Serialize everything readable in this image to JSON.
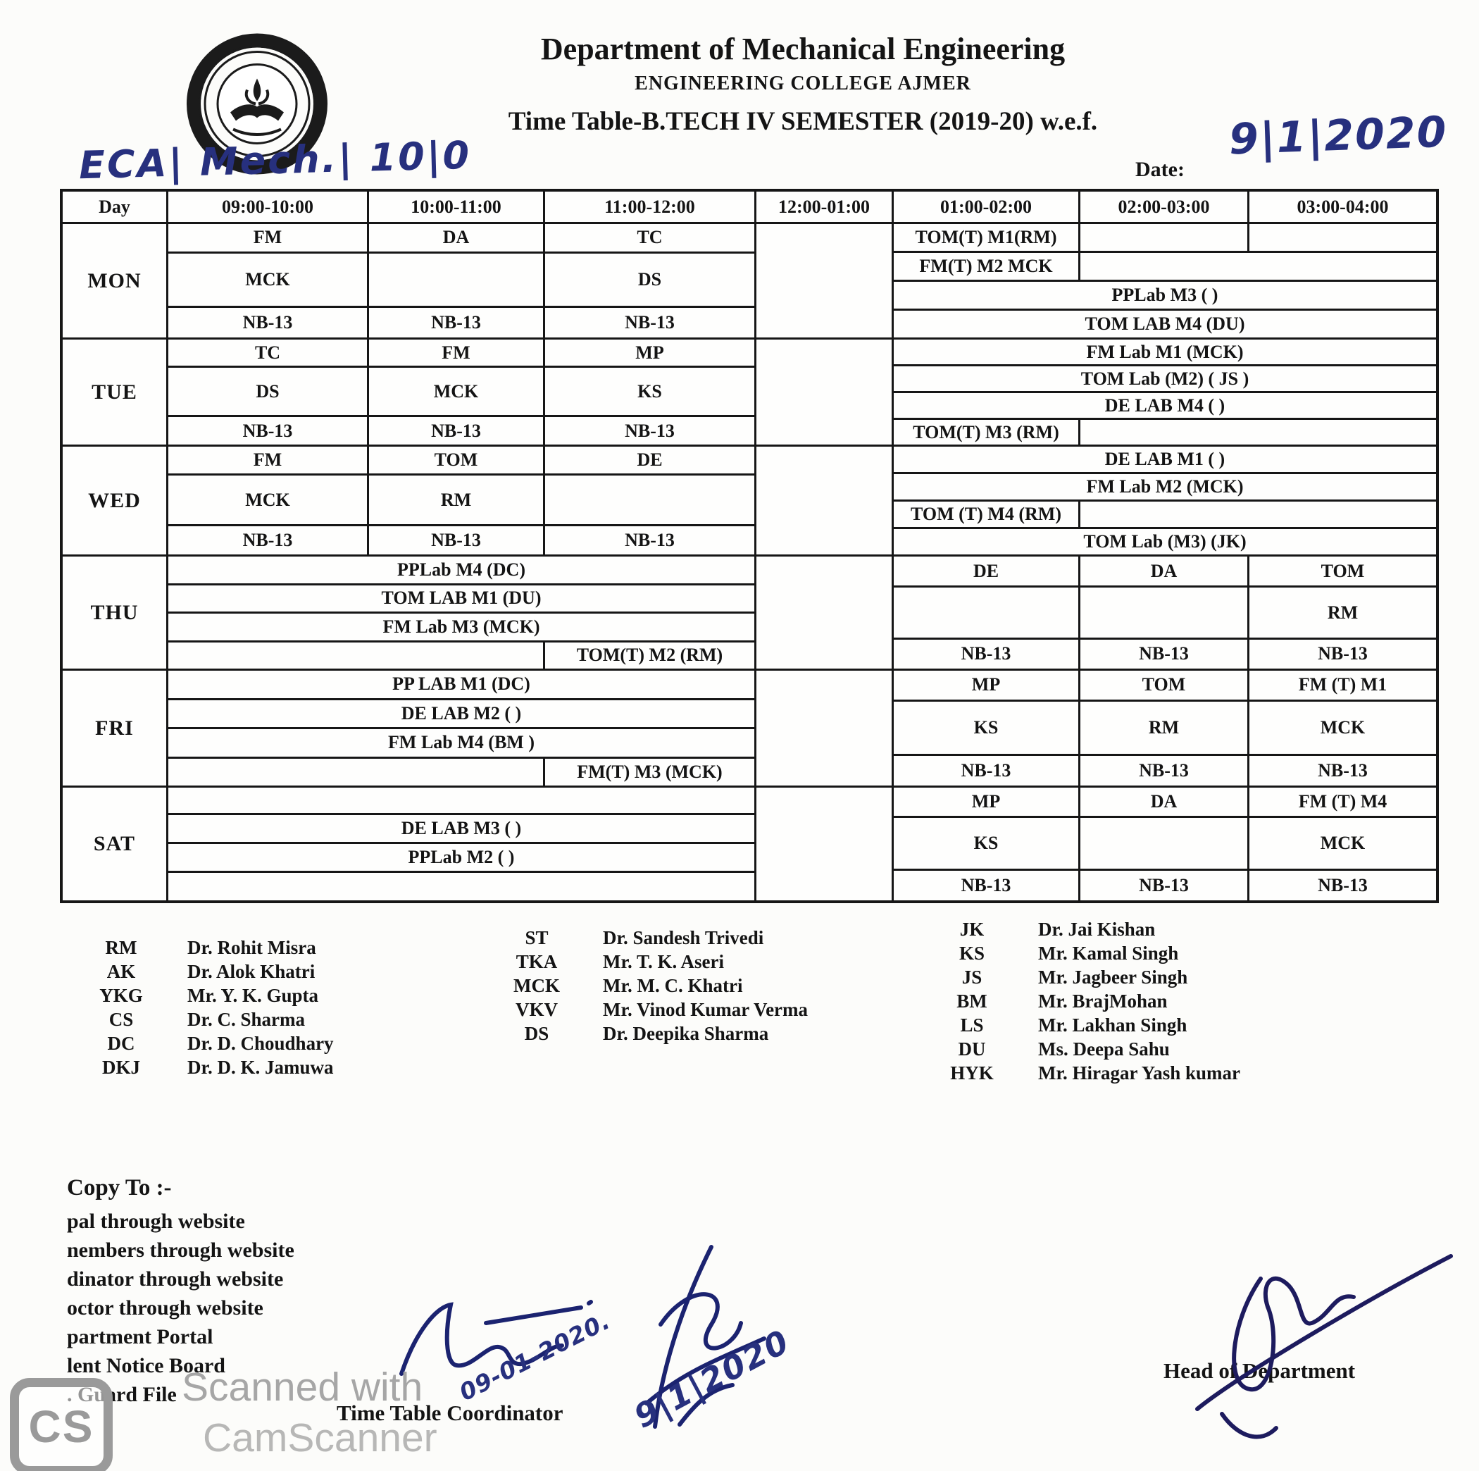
{
  "header": {
    "handwritten_class_code": "ECA| Mech.| 10|0",
    "department_title": "Department of Mechanical Engineering",
    "college_name": "ENGINEERING COLLEGE AJMER",
    "timetable_title": "Time Table-B.TECH IV SEMESTER (2019-20) w.e.f.",
    "date_label": "Date:",
    "handwritten_date": "9|1|2020"
  },
  "timetable": {
    "columns": [
      "Day",
      "09:00-10:00",
      "10:00-11:00",
      "11:00-12:00",
      "12:00-01:00",
      "01:00-02:00",
      "02:00-03:00",
      "03:00-04:00"
    ],
    "days": [
      {
        "name": "MON",
        "left_rows": [
          {
            "h": 25,
            "cells": [
              {
                "t": "FM",
                "w": 1
              },
              {
                "t": "DA",
                "w": 1
              },
              {
                "t": "TC",
                "w": 1
              }
            ]
          },
          {
            "h": 48,
            "cells": [
              {
                "t": "MCK",
                "w": 1
              },
              {
                "t": "",
                "w": 1
              },
              {
                "t": "DS",
                "w": 1
              }
            ]
          },
          {
            "h": 27,
            "cells": [
              {
                "t": "NB-13",
                "w": 1
              },
              {
                "t": "NB-13",
                "w": 1
              },
              {
                "t": "NB-13",
                "w": 1
              }
            ]
          }
        ],
        "right_rows": [
          {
            "h": 25,
            "cells": [
              {
                "t": "TOM(T) M1(RM)",
                "w": 1
              },
              {
                "t": "",
                "w": 1
              },
              {
                "t": "",
                "w": 1
              }
            ]
          },
          {
            "h": 25,
            "cells": [
              {
                "t": "FM(T) M2 MCK",
                "w": 1
              },
              {
                "t": "",
                "w": 2
              }
            ]
          },
          {
            "h": 25,
            "cells": [
              {
                "t": "PPLab M3 ( )",
                "w": 3
              }
            ]
          },
          {
            "h": 25,
            "cells": [
              {
                "t": "TOM LAB M4 (DU)",
                "w": 3
              }
            ]
          }
        ]
      },
      {
        "name": "TUE",
        "left_rows": [
          {
            "h": 26,
            "cells": [
              {
                "t": "TC",
                "w": 1
              },
              {
                "t": "FM",
                "w": 1
              },
              {
                "t": "MP",
                "w": 1
              }
            ]
          },
          {
            "h": 47,
            "cells": [
              {
                "t": "DS",
                "w": 1
              },
              {
                "t": "MCK",
                "w": 1
              },
              {
                "t": "KS",
                "w": 1
              }
            ]
          },
          {
            "h": 27,
            "cells": [
              {
                "t": "NB-13",
                "w": 1
              },
              {
                "t": "NB-13",
                "w": 1
              },
              {
                "t": "NB-13",
                "w": 1
              }
            ]
          }
        ],
        "right_rows": [
          {
            "h": 25,
            "cells": [
              {
                "t": "FM Lab M1 (MCK)",
                "w": 3
              }
            ]
          },
          {
            "h": 25,
            "cells": [
              {
                "t": "TOM Lab (M2) ( JS )",
                "w": 3
              }
            ]
          },
          {
            "h": 25,
            "cells": [
              {
                "t": "DE LAB M4 ( )",
                "w": 3
              }
            ]
          },
          {
            "h": 25,
            "cells": [
              {
                "t": "TOM(T) M3 (RM)",
                "w": 1
              },
              {
                "t": "",
                "w": 2
              }
            ]
          }
        ]
      },
      {
        "name": "WED",
        "left_rows": [
          {
            "h": 26,
            "cells": [
              {
                "t": "FM",
                "w": 1
              },
              {
                "t": "TOM",
                "w": 1
              },
              {
                "t": "DE",
                "w": 1
              }
            ]
          },
          {
            "h": 47,
            "cells": [
              {
                "t": "MCK",
                "w": 1
              },
              {
                "t": "RM",
                "w": 1
              },
              {
                "t": "",
                "w": 1
              }
            ]
          },
          {
            "h": 27,
            "cells": [
              {
                "t": "NB-13",
                "w": 1
              },
              {
                "t": "NB-13",
                "w": 1
              },
              {
                "t": "NB-13",
                "w": 1
              }
            ]
          }
        ],
        "right_rows": [
          {
            "h": 25,
            "cells": [
              {
                "t": "DE LAB M1 ( )",
                "w": 3
              }
            ]
          },
          {
            "h": 25,
            "cells": [
              {
                "t": "FM Lab M2 (MCK)",
                "w": 3
              }
            ]
          },
          {
            "h": 25,
            "cells": [
              {
                "t": "TOM (T) M4 (RM)",
                "w": 1
              },
              {
                "t": "",
                "w": 2
              }
            ]
          },
          {
            "h": 25,
            "cells": [
              {
                "t": "TOM Lab (M3) (JK)",
                "w": 3
              }
            ]
          }
        ]
      },
      {
        "name": "THU",
        "left_rows": [
          {
            "h": 25,
            "cells": [
              {
                "t": "PPLab M4 (DC)",
                "w": 3
              }
            ]
          },
          {
            "h": 25,
            "cells": [
              {
                "t": "TOM LAB M1 (DU)",
                "w": 3
              }
            ]
          },
          {
            "h": 25,
            "cells": [
              {
                "t": "FM Lab M3 (MCK)",
                "w": 3
              }
            ]
          },
          {
            "h": 25,
            "cells": [
              {
                "t": "",
                "w": 2
              },
              {
                "t": "TOM(T) M2 (RM)",
                "w": 1
              }
            ]
          }
        ],
        "right_rows": [
          {
            "h": 27,
            "cells": [
              {
                "t": "DE",
                "w": 1
              },
              {
                "t": "DA",
                "w": 1
              },
              {
                "t": "TOM",
                "w": 1
              }
            ]
          },
          {
            "h": 46,
            "cells": [
              {
                "t": "",
                "w": 1
              },
              {
                "t": "",
                "w": 1
              },
              {
                "t": "RM",
                "w": 1
              }
            ]
          },
          {
            "h": 27,
            "cells": [
              {
                "t": "NB-13",
                "w": 1
              },
              {
                "t": "NB-13",
                "w": 1
              },
              {
                "t": "NB-13",
                "w": 1
              }
            ]
          }
        ]
      },
      {
        "name": "FRI",
        "left_rows": [
          {
            "h": 25,
            "cells": [
              {
                "t": "PP LAB M1 (DC)",
                "w": 3
              }
            ]
          },
          {
            "h": 25,
            "cells": [
              {
                "t": "DE LAB M2 ( )",
                "w": 3
              }
            ]
          },
          {
            "h": 25,
            "cells": [
              {
                "t": "FM Lab M4 (BM )",
                "w": 3
              }
            ]
          },
          {
            "h": 25,
            "cells": [
              {
                "t": "",
                "w": 2
              },
              {
                "t": "FM(T) M3 (MCK)",
                "w": 1
              }
            ]
          }
        ],
        "right_rows": [
          {
            "h": 26,
            "cells": [
              {
                "t": "MP",
                "w": 1
              },
              {
                "t": "TOM",
                "w": 1
              },
              {
                "t": "FM (T) M1",
                "w": 1
              }
            ]
          },
          {
            "h": 47,
            "cells": [
              {
                "t": "KS",
                "w": 1
              },
              {
                "t": "RM",
                "w": 1
              },
              {
                "t": "MCK",
                "w": 1
              }
            ]
          },
          {
            "h": 27,
            "cells": [
              {
                "t": "NB-13",
                "w": 1
              },
              {
                "t": "NB-13",
                "w": 1
              },
              {
                "t": "NB-13",
                "w": 1
              }
            ]
          }
        ]
      },
      {
        "name": "SAT",
        "left_rows": [
          {
            "h": 24,
            "cells": [
              {
                "t": "",
                "w": 3
              }
            ]
          },
          {
            "h": 25,
            "cells": [
              {
                "t": "DE LAB M3 ( )",
                "w": 3
              }
            ]
          },
          {
            "h": 25,
            "cells": [
              {
                "t": "PPLab M2 ( )",
                "w": 3
              }
            ]
          },
          {
            "h": 26,
            "cells": [
              {
                "t": "",
                "w": 3
              }
            ]
          }
        ],
        "right_rows": [
          {
            "h": 26,
            "cells": [
              {
                "t": "MP",
                "w": 1
              },
              {
                "t": "DA",
                "w": 1
              },
              {
                "t": "FM (T) M4",
                "w": 1
              }
            ]
          },
          {
            "h": 47,
            "cells": [
              {
                "t": "KS",
                "w": 1
              },
              {
                "t": "",
                "w": 1
              },
              {
                "t": "MCK",
                "w": 1
              }
            ]
          },
          {
            "h": 27,
            "cells": [
              {
                "t": "NB-13",
                "w": 1
              },
              {
                "t": "NB-13",
                "w": 1
              },
              {
                "t": "NB-13",
                "w": 1
              }
            ]
          }
        ]
      }
    ]
  },
  "legend": {
    "groups": [
      {
        "entries": [
          [
            "RM",
            "Dr. Rohit Misra"
          ],
          [
            "AK",
            "Dr. Alok Khatri"
          ],
          [
            "YKG",
            "Mr. Y. K. Gupta"
          ],
          [
            "CS",
            "Dr. C. Sharma"
          ],
          [
            "DC",
            "Dr. D. Choudhary"
          ],
          [
            "DKJ",
            "Dr. D. K. Jamuwa"
          ]
        ]
      },
      {
        "entries": [
          [
            "ST",
            "Dr. Sandesh Trivedi"
          ],
          [
            "TKA",
            "Mr. T. K. Aseri"
          ],
          [
            "MCK",
            "Mr. M. C. Khatri"
          ],
          [
            "VKV",
            "Mr. Vinod Kumar Verma"
          ],
          [
            "DS",
            "Dr. Deepika Sharma"
          ]
        ]
      },
      {
        "entries": [
          [
            "JK",
            "Dr. Jai Kishan"
          ],
          [
            "KS",
            "Mr. Kamal Singh"
          ],
          [
            "JS",
            "Mr. Jagbeer Singh"
          ],
          [
            "BM",
            "Mr. BrajMohan"
          ],
          [
            "LS",
            "Mr. Lakhan Singh"
          ],
          [
            "DU",
            "Ms. Deepa Sahu"
          ],
          [
            "HYK",
            "Mr. Hiragar Yash kumar"
          ]
        ]
      }
    ]
  },
  "copy_to": {
    "heading": "Copy To :-",
    "lines": [
      "pal through website",
      "nembers through website",
      "dinator through website",
      "octor through website",
      "partment Portal",
      "lent Notice Board",
      ". Guard File"
    ]
  },
  "signatures": {
    "coordinator_label": "Time Table Coordinator",
    "coordinator_date_1": "09-01-2020.",
    "coordinator_date_2": "9|1|2020",
    "hod_label": "Head of Department"
  },
  "watermark": {
    "badge": "CS",
    "line1": "Scanned with",
    "line2": "CamScanner"
  }
}
